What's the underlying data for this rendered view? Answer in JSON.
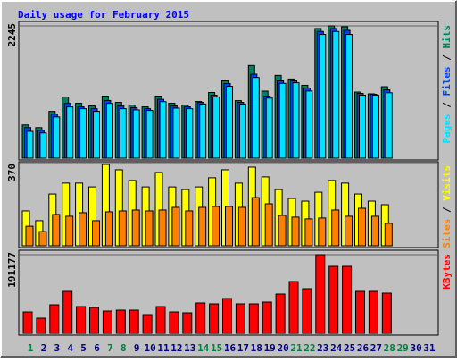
{
  "chart_data": {
    "type": "bar",
    "title": "Daily usage for February 2015",
    "categories": [
      1,
      2,
      3,
      4,
      5,
      6,
      7,
      8,
      9,
      10,
      11,
      12,
      13,
      14,
      15,
      16,
      17,
      18,
      19,
      20,
      21,
      22,
      23,
      24,
      25,
      26,
      27,
      28,
      29,
      30,
      31
    ],
    "category_colors": [
      "#008040",
      "#000080",
      "#000080",
      "#000080",
      "#000080",
      "#000080",
      "#008040",
      "#008040",
      "#000080",
      "#000080",
      "#000080",
      "#000080",
      "#000080",
      "#008040",
      "#008040",
      "#000080",
      "#000080",
      "#000080",
      "#000080",
      "#000080",
      "#008040",
      "#008040",
      "#000080",
      "#000080",
      "#000080",
      "#000080",
      "#000080",
      "#008040",
      "#008040",
      "#000080",
      "#000080"
    ],
    "legend_separator": "/",
    "panels": [
      {
        "ylim": [
          0,
          2245
        ],
        "yticks": [
          2245
        ],
        "series": [
          {
            "name": "Hits",
            "color": "#00805c",
            "values": [
              565,
              519,
              794,
              1039,
              932,
              886,
              1054,
              947,
              901,
              871,
              1054,
              932,
              901,
              962,
              1115,
              1313,
              977,
              1573,
              1138,
              1405,
              1344,
              1237,
              2200,
              2245,
              2230,
              1122,
              1092,
              1213,
              null,
              null,
              null
            ]
          },
          {
            "name": "Files",
            "color": "#0040ff",
            "values": [
              520,
              473,
              748,
              930,
              871,
              840,
              979,
              886,
              856,
              840,
              1000,
              886,
              871,
              947,
              1069,
              1267,
              947,
              1425,
              1054,
              1313,
              1313,
              1191,
              2150,
              2200,
              2170,
              1100,
              1085,
              1160,
              null,
              null,
              null
            ]
          },
          {
            "name": "Pages",
            "color": "#00e0ff",
            "values": [
              455,
              428,
              700,
              870,
              840,
              795,
              930,
              840,
              820,
              810,
              960,
              850,
              840,
              920,
              1040,
              1220,
              915,
              1370,
              1020,
              1270,
              1280,
              1140,
              2100,
              2150,
              2100,
              1070,
              1070,
              1110,
              null,
              null,
              null
            ]
          }
        ]
      },
      {
        "ylim": [
          0,
          370
        ],
        "yticks": [
          370
        ],
        "series": [
          {
            "name": "Visits",
            "color": "#ffff00",
            "values": [
              157,
              113,
              233,
              282,
              282,
              265,
              366,
              342,
              294,
              265,
              330,
              265,
              253,
              265,
              306,
              342,
              282,
              354,
              310,
              253,
              213,
              201,
              241,
              294,
              282,
              233,
              201,
              185,
              null,
              null,
              null
            ]
          },
          {
            "name": "Sites",
            "color": "#ff8000",
            "values": [
              88,
              64,
              141,
              133,
              149,
              113,
              153,
              157,
              161,
              157,
              161,
              173,
              157,
              173,
              177,
              177,
              173,
              217,
              189,
              137,
              129,
              121,
              125,
              161,
              133,
              169,
              133,
              101,
              null,
              null,
              null
            ]
          }
        ]
      },
      {
        "ylim": [
          0,
          191177
        ],
        "yticks": [
          191177
        ],
        "series": [
          {
            "name": "KBytes",
            "color": "#ff0000",
            "values": [
              52139,
              36932,
              69519,
              102106,
              65174,
              63002,
              54312,
              56485,
              56485,
              45622,
              65174,
              52139,
              49967,
              73864,
              71692,
              84726,
              71692,
              71692,
              76037,
              95589,
              126004,
              108624,
              191177,
              162935,
              162935,
              102106,
              102106,
              97761,
              null,
              null,
              null
            ]
          }
        ]
      }
    ]
  }
}
